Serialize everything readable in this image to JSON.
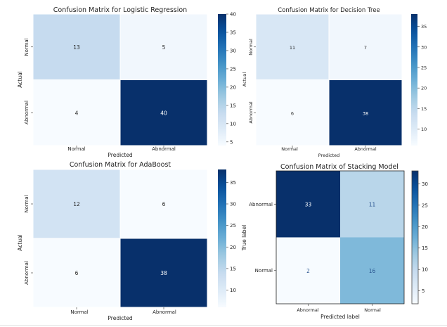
{
  "chart_data": [
    {
      "type": "heatmap",
      "title": "Confusion Matrix for Logistic Regression",
      "xlabel": "Predicted",
      "ylabel": "Actual",
      "x_categories": [
        "Normal",
        "Abnormal"
      ],
      "y_categories": [
        "Normal",
        "Abnormal"
      ],
      "values": [
        [
          13,
          5
        ],
        [
          4,
          40
        ]
      ],
      "colormap": "Blues",
      "colorbar": {
        "range": [
          4,
          40
        ],
        "ticks": [
          5,
          10,
          15,
          20,
          25,
          30,
          35,
          40
        ]
      },
      "style": "seaborn"
    },
    {
      "type": "heatmap",
      "title": "Confusion Matrix for Decision Tree",
      "xlabel": "Predicted",
      "ylabel": "Actual",
      "x_categories": [
        "Normal",
        "Abnormal"
      ],
      "y_categories": [
        "Normal",
        "Abnormal"
      ],
      "values": [
        [
          11,
          7
        ],
        [
          6,
          38
        ]
      ],
      "colormap": "Blues",
      "colorbar": {
        "range": [
          6,
          38
        ],
        "ticks": [
          10,
          15,
          20,
          25,
          30,
          35
        ]
      },
      "style": "seaborn"
    },
    {
      "type": "heatmap",
      "title": "Confusion Matrix for AdaBoost",
      "xlabel": "Predicted",
      "ylabel": "Actual",
      "x_categories": [
        "Normal",
        "Abnormal"
      ],
      "y_categories": [
        "Normal",
        "Abnormal"
      ],
      "values": [
        [
          12,
          6
        ],
        [
          6,
          38
        ]
      ],
      "colormap": "Blues",
      "colorbar": {
        "range": [
          6,
          38
        ],
        "ticks": [
          10,
          15,
          20,
          25,
          30,
          35
        ]
      },
      "style": "seaborn"
    },
    {
      "type": "heatmap",
      "title": "Confusion Matrix of Stacking Model",
      "xlabel": "Predicted label",
      "ylabel": "True label",
      "x_categories": [
        "Abnormal",
        "Normal"
      ],
      "y_categories": [
        "Abnormal",
        "Normal"
      ],
      "values": [
        [
          33,
          11
        ],
        [
          2,
          16
        ]
      ],
      "colormap": "Blues",
      "colorbar": {
        "range": [
          2,
          33
        ],
        "ticks": [
          5,
          10,
          15,
          20,
          25,
          30
        ]
      },
      "style": "sklearn"
    }
  ]
}
